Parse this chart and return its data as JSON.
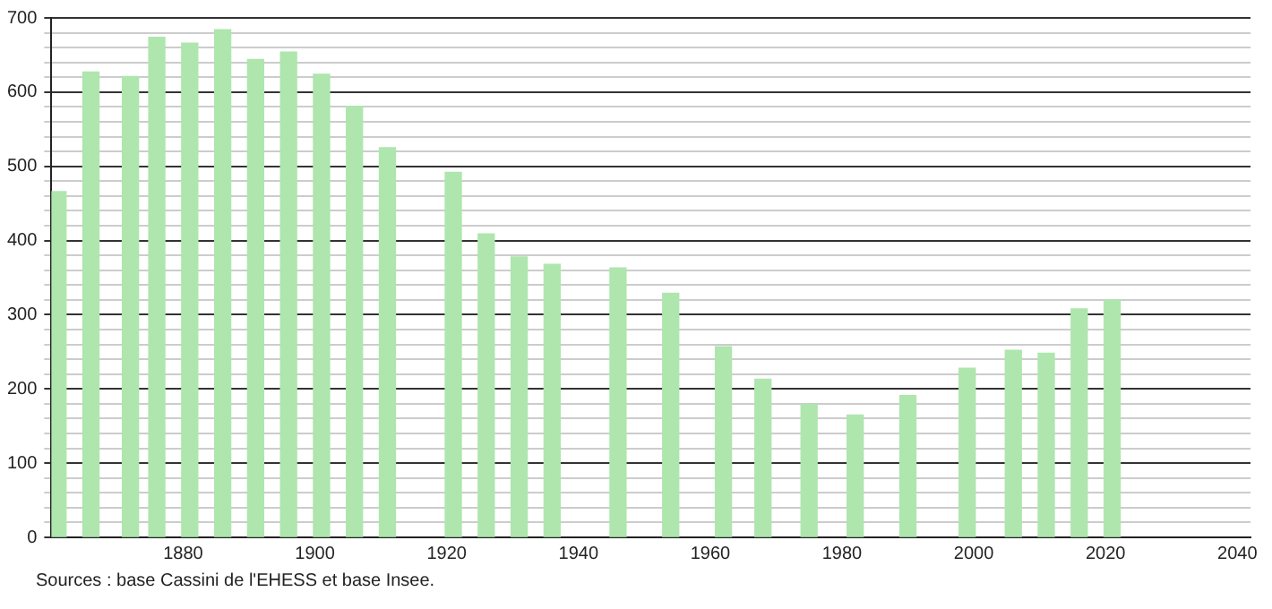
{
  "chart_data": {
    "type": "bar",
    "x": [
      1861,
      1866,
      1872,
      1876,
      1881,
      1886,
      1891,
      1896,
      1901,
      1906,
      1911,
      1921,
      1926,
      1931,
      1936,
      1946,
      1954,
      1962,
      1968,
      1975,
      1982,
      1990,
      1999,
      2006,
      2011,
      2016,
      2021
    ],
    "values": [
      466,
      627,
      621,
      674,
      666,
      684,
      644,
      654,
      624,
      581,
      525,
      492,
      409,
      378,
      368,
      363,
      329,
      257,
      213,
      179,
      165,
      191,
      228,
      252,
      248,
      308,
      320
    ],
    "color": "#aee6ae",
    "xlim": [
      1860,
      2042
    ],
    "xticks": [
      1880,
      1900,
      1920,
      1940,
      1960,
      1980,
      2000,
      2020,
      2040
    ],
    "ylim": [
      0,
      700
    ],
    "yticks": [
      0,
      {
        "value": 20,
        "label": null
      },
      {
        "value": 40,
        "label": null
      },
      {
        "value": 60,
        "label": null
      },
      {
        "value": 80,
        "label": null
      },
      100,
      {
        "value": 120,
        "label": null
      },
      {
        "value": 140,
        "label": null
      },
      {
        "value": 160,
        "label": null
      },
      {
        "value": 180,
        "label": null
      },
      200,
      {
        "value": 220,
        "label": null
      },
      {
        "value": 240,
        "label": null
      },
      {
        "value": 260,
        "label": null
      },
      {
        "value": 280,
        "label": null
      },
      300,
      {
        "value": 320,
        "label": null
      },
      {
        "value": 340,
        "label": null
      },
      {
        "value": 360,
        "label": null
      },
      {
        "value": 380,
        "label": null
      },
      400,
      {
        "value": 420,
        "label": null
      },
      {
        "value": 440,
        "label": null
      },
      {
        "value": 460,
        "label": null
      },
      {
        "value": 480,
        "label": null
      },
      500,
      {
        "value": 520,
        "label": null
      },
      {
        "value": 540,
        "label": null
      },
      {
        "value": 560,
        "label": null
      },
      {
        "value": 580,
        "label": null
      },
      600,
      {
        "value": 620,
        "label": null
      },
      {
        "value": 640,
        "label": null
      },
      {
        "value": 660,
        "label": null
      },
      {
        "value": 680,
        "label": null
      },
      700
    ],
    "grid": "y",
    "annotations": [
      "Sources : base Cassini de l'EHESS et base Insee."
    ]
  }
}
